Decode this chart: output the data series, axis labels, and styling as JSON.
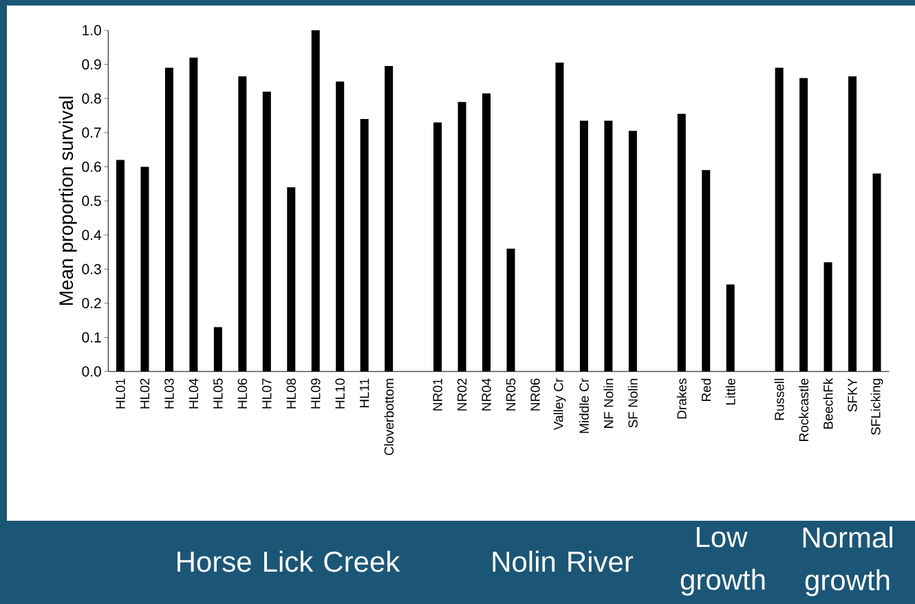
{
  "chart_data": {
    "type": "bar",
    "ylabel": "Mean proportion survival",
    "categories": [
      "HL01",
      "HL02",
      "HL03",
      "HL04",
      "HL05",
      "HL06",
      "HL07",
      "HL08",
      "HL09",
      "HL10",
      "HL11",
      "Cloverbottom",
      null,
      "NR01",
      "NR02",
      "NR04",
      "NR05",
      "NR06",
      "Valley Cr",
      "Middle Cr",
      "NF Nolin",
      "SF Nolin",
      null,
      "Drakes",
      "Red",
      "Little",
      null,
      "Russell",
      "Rockcastle",
      "BeechFk",
      "SFKY",
      "SFLicking"
    ],
    "values": [
      0.62,
      0.6,
      0.89,
      0.92,
      0.13,
      0.865,
      0.82,
      0.54,
      1.0,
      0.85,
      0.74,
      0.895,
      null,
      0.73,
      0.79,
      0.815,
      0.36,
      null,
      0.905,
      0.735,
      0.735,
      0.705,
      null,
      0.755,
      0.59,
      0.255,
      null,
      0.89,
      0.86,
      0.32,
      0.865,
      0.58
    ],
    "color": "#000000",
    "ylim": [
      0,
      1.0
    ],
    "yticks": [
      {
        "value": 0,
        "label": "0.0"
      },
      {
        "value": 0.1,
        "label": "0.1"
      },
      {
        "value": 0.2,
        "label": "0.2"
      },
      {
        "value": 0.3,
        "label": "0.3"
      },
      {
        "value": 0.4,
        "label": "0.4"
      },
      {
        "value": 0.5,
        "label": "0.5"
      },
      {
        "value": 0.6,
        "label": "0.6"
      },
      {
        "value": 0.7,
        "label": "0.7"
      },
      {
        "value": 0.8,
        "label": "0.8"
      },
      {
        "value": 0.9,
        "label": "0.9"
      },
      {
        "value": 1.0,
        "label": "1.0"
      }
    ],
    "annotations": [
      "Horse Lick Creek",
      "Nolin River",
      "Low growth",
      "Normal growth"
    ]
  }
}
